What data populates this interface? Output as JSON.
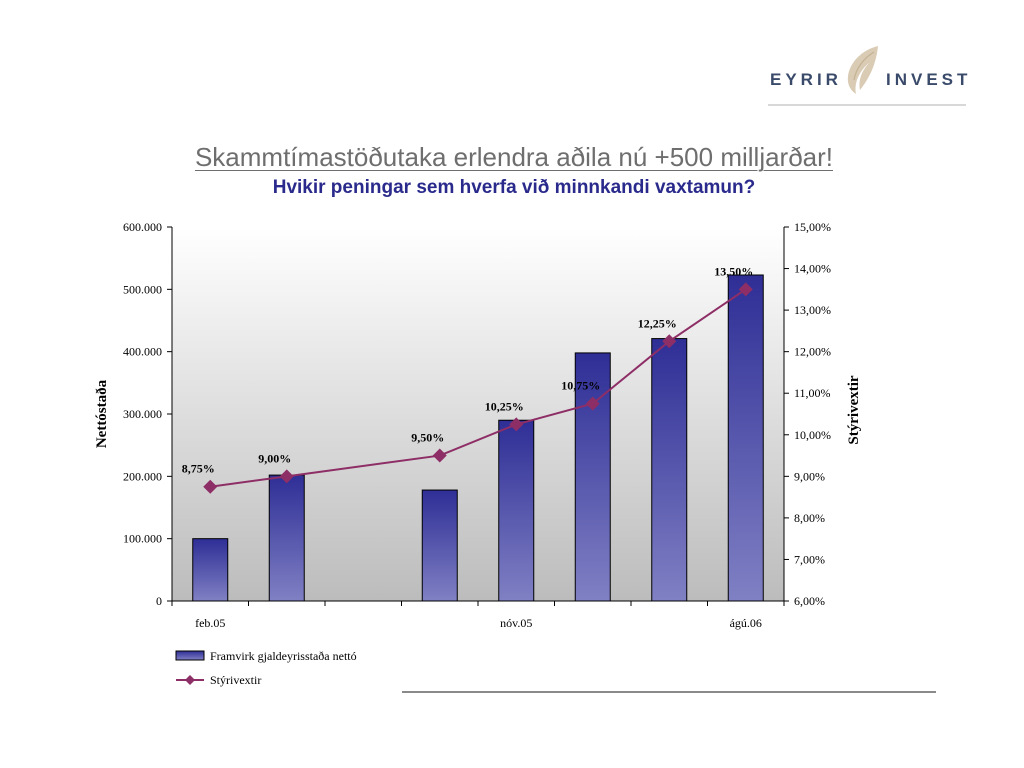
{
  "brand": {
    "left": "EYRIR",
    "right": "INVEST",
    "mark": "eyrir-feather-icon"
  },
  "title": "Skammtímastöðutaka erlendra aðila nú +500 milljarðar!",
  "subtitle": "Hvikir peningar sem hverfa við minnkandi vaxtamun?",
  "colors": {
    "bar": "#34349a",
    "line": "#8e2e66",
    "title": "#6e6e6e",
    "subtitle": "#2a2a8c"
  },
  "chart_data": {
    "type": "bar+line",
    "categories_shown": [
      "feb.05",
      "nóv.05",
      "ágú.06"
    ],
    "series": [
      {
        "name": "Framvirk gjaldeyrisstaða nettó",
        "type": "bar",
        "axis": "left",
        "values": [
          100000,
          202000,
          null,
          178000,
          290000,
          398000,
          421000,
          523000
        ]
      },
      {
        "name": "Stýrivextir",
        "type": "line",
        "axis": "right",
        "values": [
          8.75,
          9.0,
          null,
          9.5,
          10.25,
          10.75,
          12.25,
          13.5
        ],
        "labels": [
          "8,75%",
          "9,00%",
          "",
          "9,50%",
          "10,25%",
          "10,75%",
          "12,25%",
          "13,50%"
        ]
      }
    ],
    "x_ticks": [
      "feb.05",
      "",
      "",
      "",
      "nóv.05",
      "",
      "",
      "ágú.06"
    ],
    "y_left": {
      "label": "Nettóstaða",
      "range": [
        0,
        600000
      ],
      "ticks": [
        "0",
        "100.000",
        "200.000",
        "300.000",
        "400.000",
        "500.000",
        "600.000"
      ]
    },
    "y_right": {
      "label": "Stýrivextir",
      "range": [
        6,
        15
      ],
      "ticks": [
        "6,00%",
        "7,00%",
        "8,00%",
        "9,00%",
        "10,00%",
        "11,00%",
        "12,00%",
        "13,00%",
        "14,00%",
        "15,00%"
      ]
    },
    "legend": {
      "position": "bottom-left",
      "entries": [
        "Framvirk gjaldeyrisstaða nettó",
        "Stýrivextir"
      ]
    },
    "grid": false
  }
}
